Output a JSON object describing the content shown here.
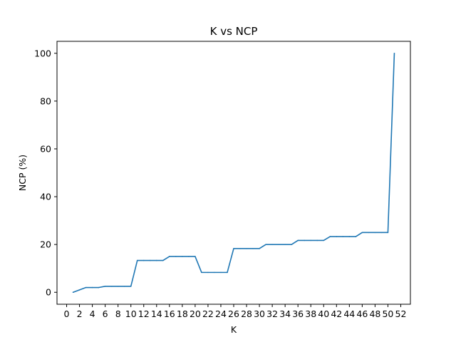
{
  "chart_data": {
    "type": "line",
    "title": "K vs NCP",
    "xlabel": "K",
    "ylabel": "NCP (%)",
    "xlim": [
      -1.5,
      53.5
    ],
    "ylim": [
      -5,
      105
    ],
    "grid": false,
    "color": "#1f77b4",
    "x_ticks": [
      0,
      2,
      4,
      6,
      8,
      10,
      12,
      14,
      16,
      18,
      20,
      22,
      24,
      26,
      28,
      30,
      32,
      34,
      36,
      38,
      40,
      42,
      44,
      46,
      48,
      50,
      52
    ],
    "x_tick_labels": [
      "0",
      "2",
      "4",
      "6",
      "8",
      "10",
      "12",
      "14",
      "16",
      "18",
      "20",
      "22",
      "24",
      "26",
      "28",
      "30",
      "32",
      "34",
      "36",
      "38",
      "40",
      "42",
      "44",
      "46",
      "48",
      "50",
      "52"
    ],
    "y_ticks": [
      0,
      20,
      40,
      60,
      80,
      100
    ],
    "y_tick_labels": [
      "0",
      "20",
      "40",
      "60",
      "80",
      "100"
    ],
    "series": [
      {
        "x": [
          1,
          2,
          3,
          4,
          5,
          6,
          7,
          8,
          9,
          10,
          11,
          12,
          13,
          14,
          15,
          16,
          17,
          18,
          19,
          20,
          21,
          22,
          23,
          24,
          25,
          26,
          27,
          28,
          29,
          30,
          31,
          32,
          33,
          34,
          35,
          36,
          37,
          38,
          39,
          40,
          41,
          42,
          43,
          44,
          45,
          46,
          47,
          48,
          49,
          50,
          51
        ],
        "values": [
          0,
          1,
          2,
          2,
          2,
          2.5,
          2.5,
          2.5,
          2.5,
          2.5,
          13.3,
          13.3,
          13.3,
          13.3,
          13.3,
          15,
          15,
          15,
          15,
          15,
          8.3,
          8.3,
          8.3,
          8.3,
          8.3,
          18.3,
          18.3,
          18.3,
          18.3,
          18.3,
          20,
          20,
          20,
          20,
          20,
          21.7,
          21.7,
          21.7,
          21.7,
          21.7,
          23.3,
          23.3,
          23.3,
          23.3,
          23.3,
          25,
          25,
          25,
          25,
          25,
          100
        ]
      }
    ]
  }
}
